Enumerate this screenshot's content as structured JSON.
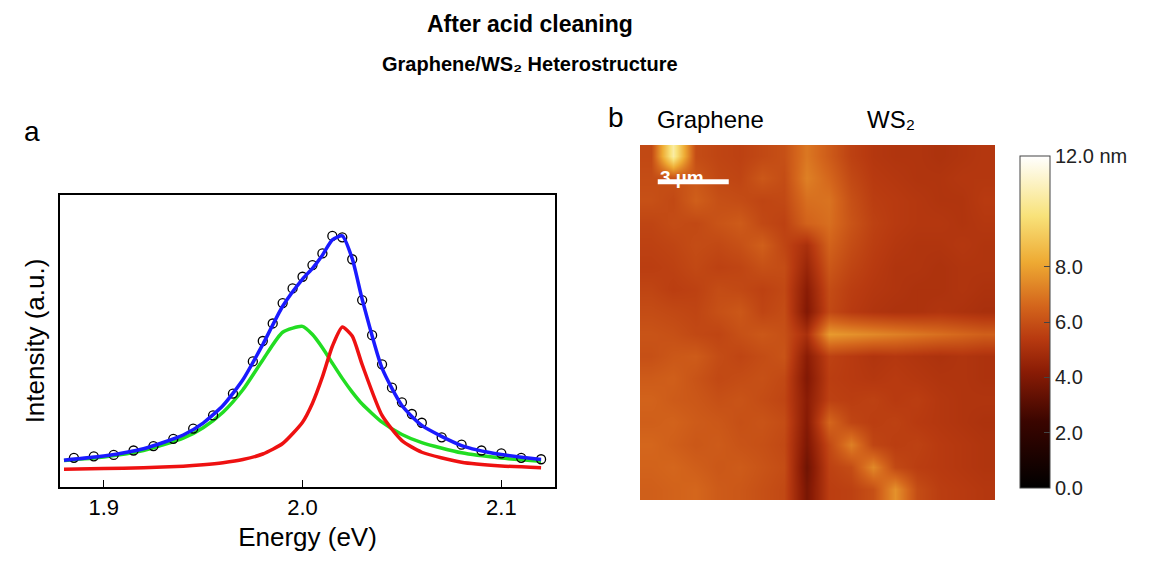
{
  "title": "After acid cleaning",
  "subtitle": "Graphene/WS₂ Heterostructure",
  "chart_data": [
    {
      "panel": "a",
      "type": "line",
      "x_label": "Energy (eV)",
      "y_label": "Intensity (a.u.)",
      "xlim": [
        1.878,
        2.127
      ],
      "xticks": [
        1.9,
        {
          "value": 2.0,
          "label": "2.0"
        },
        2.1
      ],
      "ylim": [
        0,
        1
      ],
      "yticks": [],
      "tick_labels": "x",
      "series": [
        {
          "type": "line",
          "color": "#22dd22",
          "line_style": "solid",
          "x": [
            1.88,
            1.9,
            1.92,
            1.94,
            1.95,
            1.96,
            1.97,
            1.98,
            1.99,
            2.0,
            2.005,
            2.01,
            2.015,
            2.02,
            2.025,
            2.03,
            2.04,
            2.05,
            2.06,
            2.08,
            2.1,
            2.12
          ],
          "values": [
            0.091,
            0.103,
            0.125,
            0.167,
            0.203,
            0.256,
            0.333,
            0.435,
            0.53,
            0.55,
            0.522,
            0.477,
            0.424,
            0.372,
            0.325,
            0.284,
            0.222,
            0.18,
            0.152,
            0.117,
            0.099,
            0.088
          ]
        },
        {
          "type": "line",
          "color": "#ee1111",
          "line_style": "solid",
          "x": [
            1.88,
            1.9,
            1.92,
            1.94,
            1.95,
            1.96,
            1.97,
            1.98,
            1.99,
            2.0,
            2.005,
            2.01,
            2.015,
            2.02,
            2.025,
            2.03,
            2.04,
            2.05,
            2.06,
            2.08,
            2.1,
            2.12
          ],
          "values": [
            0.061,
            0.063,
            0.066,
            0.071,
            0.076,
            0.083,
            0.094,
            0.113,
            0.149,
            0.222,
            0.287,
            0.377,
            0.482,
            0.548,
            0.517,
            0.419,
            0.245,
            0.159,
            0.119,
            0.085,
            0.072,
            0.066
          ]
        },
        {
          "type": "scatter",
          "color": "#000000",
          "marker": "open_circle",
          "x": [
            1.885,
            1.895,
            1.905,
            1.915,
            1.925,
            1.935,
            1.945,
            1.955,
            1.965,
            1.975,
            1.98,
            1.985,
            1.99,
            1.995,
            2.0,
            2.005,
            2.01,
            2.015,
            2.02,
            2.025,
            2.03,
            2.035,
            2.04,
            2.045,
            2.05,
            2.055,
            2.06,
            2.07,
            2.08,
            2.09,
            2.1,
            2.11,
            2.12
          ],
          "values": [
            0.1,
            0.105,
            0.11,
            0.125,
            0.14,
            0.165,
            0.2,
            0.245,
            0.32,
            0.43,
            0.5,
            0.56,
            0.63,
            0.68,
            0.72,
            0.76,
            0.8,
            0.86,
            0.855,
            0.78,
            0.64,
            0.52,
            0.42,
            0.34,
            0.29,
            0.25,
            0.22,
            0.17,
            0.145,
            0.125,
            0.115,
            0.1,
            0.095
          ]
        },
        {
          "type": "line",
          "color": "#1a1aff",
          "line_style": "solid",
          "x": [
            1.88,
            1.9,
            1.92,
            1.94,
            1.95,
            1.96,
            1.97,
            1.98,
            1.99,
            2.0,
            2.005,
            2.01,
            2.015,
            2.02,
            2.025,
            2.03,
            2.04,
            2.05,
            2.06,
            2.08,
            2.1,
            2.12
          ],
          "values": [
            0.092,
            0.106,
            0.131,
            0.178,
            0.219,
            0.279,
            0.367,
            0.488,
            0.619,
            0.712,
            0.749,
            0.794,
            0.846,
            0.86,
            0.782,
            0.643,
            0.407,
            0.279,
            0.211,
            0.142,
            0.111,
            0.094
          ]
        }
      ]
    },
    {
      "panel": "b",
      "type": "heatmap",
      "labels": [
        "Graphene",
        "WS₂"
      ],
      "xlim": [
        0,
        15
      ],
      "ylim": [
        0,
        15
      ],
      "tick_labels": false,
      "scale_bar": {
        "value": 3,
        "label": "3 µm"
      },
      "colorbar": {
        "range": [
          0,
          12
        ],
        "ticks": [
          {
            "value": 0,
            "label": "0.0"
          },
          {
            "value": 2,
            "label": "2.0"
          },
          {
            "value": 4,
            "label": "4.0"
          },
          {
            "value": 6,
            "label": "6.0"
          },
          {
            "value": 8,
            "label": "8.0"
          },
          {
            "value": 12,
            "label": "12.0 nm"
          }
        ]
      },
      "cells": [
        [
          5.8,
          10.5,
          5.9,
          5.7,
          5.6,
          5.8,
          6.0,
          7.0,
          6.3,
          5.6,
          5.3,
          5.2,
          5.2,
          5.1,
          5.2,
          5.3
        ],
        [
          5.9,
          6.0,
          6.2,
          5.8,
          5.7,
          6.2,
          5.9,
          7.2,
          6.6,
          5.8,
          5.4,
          5.3,
          5.2,
          5.2,
          5.3,
          5.3
        ],
        [
          6.0,
          5.8,
          6.4,
          6.0,
          5.9,
          5.7,
          5.8,
          6.8,
          6.9,
          6.0,
          5.5,
          5.4,
          5.3,
          5.2,
          5.2,
          5.4
        ],
        [
          5.7,
          5.9,
          5.8,
          6.1,
          6.3,
          5.8,
          5.6,
          6.5,
          6.8,
          6.1,
          5.6,
          5.4,
          5.3,
          5.3,
          5.2,
          5.3
        ],
        [
          5.6,
          5.7,
          5.9,
          5.8,
          6.0,
          6.4,
          5.7,
          5.0,
          6.5,
          5.9,
          5.5,
          5.3,
          5.2,
          5.2,
          5.3,
          5.2
        ],
        [
          5.5,
          5.6,
          5.8,
          5.6,
          5.7,
          6.0,
          5.9,
          4.6,
          6.2,
          5.7,
          5.4,
          5.2,
          5.2,
          5.1,
          5.2,
          5.2
        ],
        [
          5.7,
          5.5,
          5.6,
          5.9,
          5.8,
          5.6,
          5.8,
          4.2,
          5.9,
          5.5,
          5.3,
          5.2,
          5.1,
          5.1,
          5.2,
          5.1
        ],
        [
          5.9,
          5.8,
          5.7,
          6.0,
          6.2,
          5.7,
          5.9,
          4.0,
          5.8,
          5.4,
          5.2,
          5.1,
          5.1,
          5.2,
          5.1,
          5.0
        ],
        [
          6.1,
          6.0,
          5.8,
          5.7,
          6.0,
          6.2,
          6.0,
          5.0,
          7.8,
          7.6,
          7.4,
          7.2,
          7.0,
          6.8,
          6.6,
          6.4
        ],
        [
          6.0,
          6.2,
          6.3,
          5.9,
          5.7,
          5.9,
          6.1,
          4.2,
          5.6,
          5.4,
          5.2,
          5.3,
          5.2,
          5.1,
          5.2,
          5.1
        ],
        [
          6.3,
          6.4,
          6.1,
          5.8,
          5.9,
          6.0,
          5.8,
          4.0,
          5.5,
          5.4,
          5.3,
          5.4,
          5.3,
          5.2,
          5.2,
          5.1
        ],
        [
          6.5,
          6.3,
          6.2,
          6.0,
          6.1,
          5.9,
          5.7,
          4.2,
          5.6,
          5.5,
          5.6,
          5.4,
          5.5,
          5.3,
          5.2,
          5.2
        ],
        [
          6.4,
          6.5,
          6.3,
          6.2,
          6.0,
          6.1,
          5.9,
          4.1,
          6.6,
          5.7,
          5.5,
          5.6,
          5.4,
          5.3,
          5.2,
          5.1
        ],
        [
          6.6,
          6.4,
          6.2,
          6.3,
          6.1,
          6.0,
          5.8,
          3.9,
          5.8,
          7.2,
          5.7,
          5.5,
          5.6,
          5.4,
          5.3,
          5.2
        ],
        [
          6.5,
          6.6,
          6.4,
          6.2,
          6.3,
          6.1,
          5.9,
          3.6,
          5.6,
          5.9,
          7.4,
          5.8,
          5.5,
          5.4,
          5.3,
          5.2
        ],
        [
          6.4,
          6.5,
          6.6,
          6.3,
          6.2,
          6.0,
          5.8,
          3.8,
          5.5,
          5.6,
          6.0,
          7.6,
          5.9,
          5.5,
          5.4,
          5.3
        ]
      ]
    }
  ]
}
